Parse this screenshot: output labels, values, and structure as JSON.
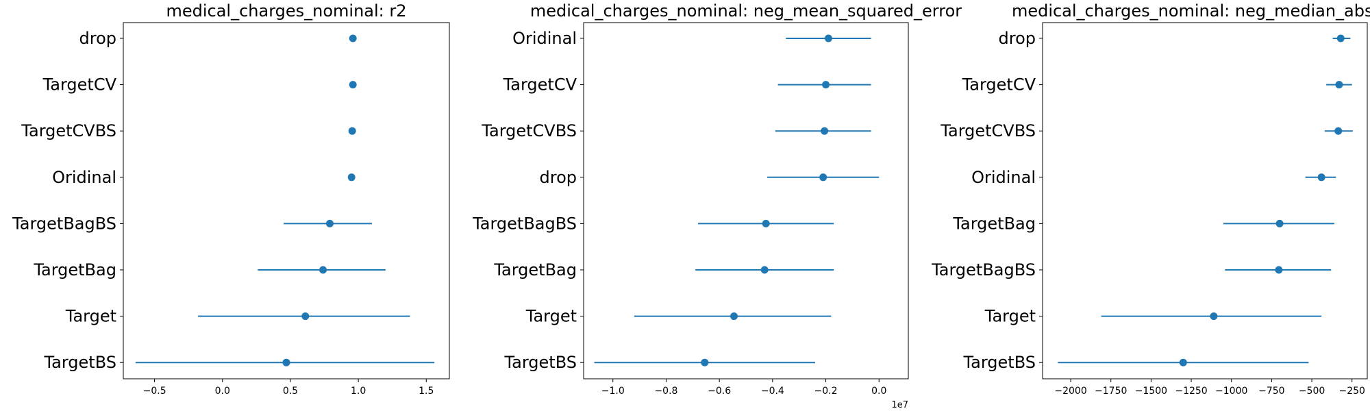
{
  "colors": {
    "marker": "#1f77b4",
    "axis": "#000000"
  },
  "chart_data": [
    {
      "type": "scatter",
      "style": "point-with-horizontal-error-bars",
      "title": "medical_charges_nominal: r2",
      "xlabel": "",
      "ylabel": "",
      "xlim": [
        -0.73,
        1.67
      ],
      "xticks": [
        -0.5,
        0.0,
        0.5,
        1.0,
        1.5
      ],
      "xtick_labels": [
        "−0.5",
        "0.0",
        "0.5",
        "1.0",
        "1.5"
      ],
      "categories": [
        "drop",
        "TargetCV",
        "TargetCVBS",
        "Oridinal",
        "TargetBagBS",
        "TargetBag",
        "Target",
        "TargetBS"
      ],
      "values": [
        0.96,
        0.96,
        0.955,
        0.95,
        0.79,
        0.74,
        0.61,
        0.47
      ],
      "err_low": [
        0.96,
        0.96,
        0.955,
        0.94,
        0.45,
        0.26,
        -0.18,
        -0.64
      ],
      "err_high": [
        0.96,
        0.96,
        0.955,
        0.96,
        1.1,
        1.2,
        1.38,
        1.56
      ],
      "grid": false,
      "legend": "none"
    },
    {
      "type": "scatter",
      "style": "point-with-horizontal-error-bars",
      "title": "medical_charges_nominal: neg_mean_squared_error",
      "xlabel": "",
      "ylabel": "",
      "xlim": [
        -1.11,
        0.11
      ],
      "xticks": [
        -1.0,
        -0.8,
        -0.6,
        -0.4,
        -0.2,
        0.0
      ],
      "xtick_labels": [
        "−1.0",
        "−0.8",
        "−0.6",
        "−0.4",
        "−0.2",
        "0.0"
      ],
      "offset_text": "1e7",
      "categories": [
        "Oridinal",
        "TargetCV",
        "TargetCVBS",
        "drop",
        "TargetBagBS",
        "TargetBag",
        "Target",
        "TargetBS"
      ],
      "values": [
        -0.19,
        -0.2,
        -0.205,
        -0.21,
        -0.425,
        -0.43,
        -0.545,
        -0.655
      ],
      "err_low": [
        -0.35,
        -0.38,
        -0.39,
        -0.42,
        -0.68,
        -0.69,
        -0.92,
        -1.07
      ],
      "err_high": [
        -0.03,
        -0.03,
        -0.03,
        0.0,
        -0.17,
        -0.17,
        -0.18,
        -0.24
      ],
      "grid": false,
      "legend": "none"
    },
    {
      "type": "scatter",
      "style": "point-with-horizontal-error-bars",
      "title": "medical_charges_nominal: neg_median_absolu",
      "xlabel": "",
      "ylabel": "",
      "xlim": [
        -2175,
        -155
      ],
      "xticks": [
        -2000,
        -1750,
        -1500,
        -1250,
        -1000,
        -750,
        -500,
        -250
      ],
      "xtick_labels": [
        "−2000",
        "−1750",
        "−1500",
        "−1250",
        "−1000",
        "−750",
        "−500",
        "−250"
      ],
      "categories": [
        "drop",
        "TargetCV",
        "TargetCVBS",
        "Oridinal",
        "TargetBag",
        "TargetBagBS",
        "Target",
        "TargetBS"
      ],
      "values": [
        -320,
        -330,
        -335,
        -440,
        -700,
        -705,
        -1110,
        -1300
      ],
      "err_low": [
        -370,
        -410,
        -420,
        -540,
        -1050,
        -1040,
        -1810,
        -2080
      ],
      "err_high": [
        -260,
        -250,
        -245,
        -350,
        -360,
        -380,
        -440,
        -520
      ],
      "grid": false,
      "legend": "none"
    }
  ]
}
